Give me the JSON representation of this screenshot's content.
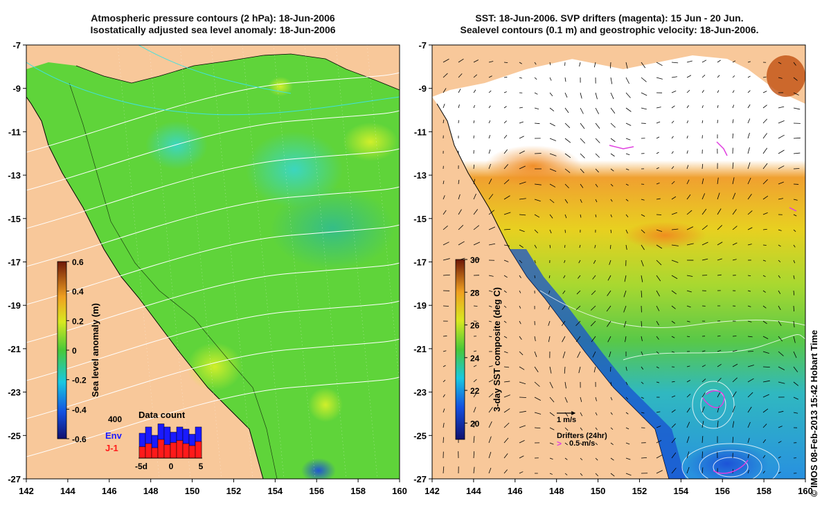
{
  "left": {
    "title_line1": "Atmospheric pressure contours (2 hPa): 18-Jun-2006",
    "title_line2": "Isostatically adjusted sea level anomaly: 18-Jun-2006",
    "colorbar": {
      "label": "Sea level anomaly (m)",
      "ticks": [
        "0.6",
        "0.4",
        "0.2",
        "0",
        "-0.2",
        "-0.4",
        "-0.6"
      ],
      "range": [
        -0.6,
        0.6
      ]
    },
    "inset": {
      "title": "Data count",
      "y_label": "400",
      "legend_env": "Env",
      "legend_j1": "J-1",
      "x_ticks": [
        "-5d",
        "0",
        "5"
      ],
      "env_values": [
        240,
        300,
        220,
        330,
        300,
        250,
        300,
        280,
        230,
        300
      ],
      "j1_values": [
        110,
        140,
        100,
        180,
        130,
        150,
        170,
        140,
        120,
        160
      ],
      "env_color": "#1a1aff",
      "j1_color": "#ff1a1a"
    }
  },
  "right": {
    "title_line1": "SST: 18-Jun-2006. SVP drifters (magenta): 15 Jun - 20 Jun.",
    "title_line2": "Sealevel contours (0.1 m) and geostrophic velocity: 18-Jun-2006.",
    "colorbar": {
      "label": "3-day SST composite (deg C)",
      "ticks": [
        "30",
        "28",
        "26",
        "24",
        "22",
        "20"
      ],
      "range": [
        19,
        30
      ]
    },
    "scale_label": "1 m/s",
    "drifter_title": "Drifters (24hr)",
    "drifter_label": "0.5 m/s",
    "drifter_color": "#e040e0"
  },
  "axes": {
    "x_ticks": [
      "142",
      "144",
      "146",
      "148",
      "150",
      "152",
      "154",
      "156",
      "158",
      "160"
    ],
    "y_ticks": [
      "-7",
      "-9",
      "-11",
      "-13",
      "-15",
      "-17",
      "-19",
      "-21",
      "-23",
      "-25",
      "-27"
    ]
  },
  "colors": {
    "land": "#f8c89a",
    "sla_base": "#5fd43a",
    "sst_warm": "#f2a030",
    "sst_cool": "#28a8e0"
  },
  "copyright": "© IMOS 08-Feb-2013 15:42 Hobart Time"
}
